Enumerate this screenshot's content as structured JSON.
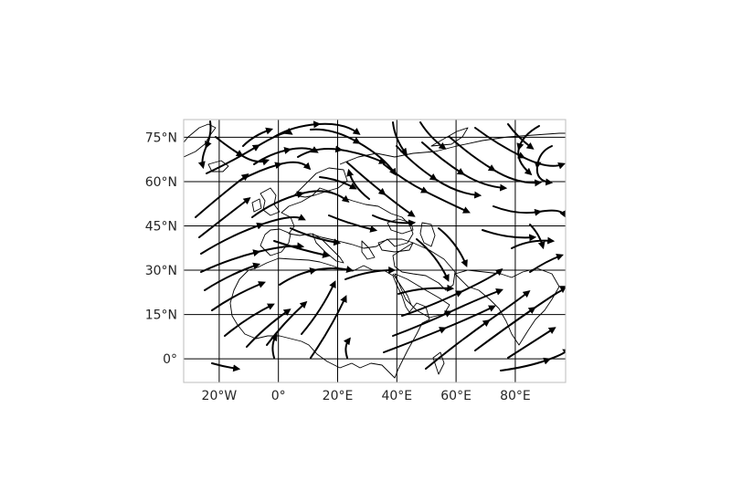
{
  "map": {
    "projection": "PlateCarree",
    "extent": {
      "lon": [
        -32,
        97
      ],
      "lat": [
        -8,
        81
      ]
    },
    "gridlines": {
      "lon": [
        -20,
        0,
        20,
        40,
        60,
        80
      ],
      "lat": [
        0,
        15,
        30,
        45,
        60,
        75
      ]
    },
    "x_tick_labels": [
      "20°W",
      "0°",
      "20°E",
      "40°E",
      "60°E",
      "80°E"
    ],
    "y_tick_labels": [
      "75°N",
      "60°N",
      "45°N",
      "30°N",
      "15°N",
      "0°"
    ],
    "layers": [
      "coastlines",
      "gridlines",
      "streamlines"
    ],
    "colors": {
      "streamline": "#000000",
      "coast": "#000000",
      "grid": "#000000",
      "frame": "#bdbdbd",
      "tick_text": "#262626"
    }
  }
}
